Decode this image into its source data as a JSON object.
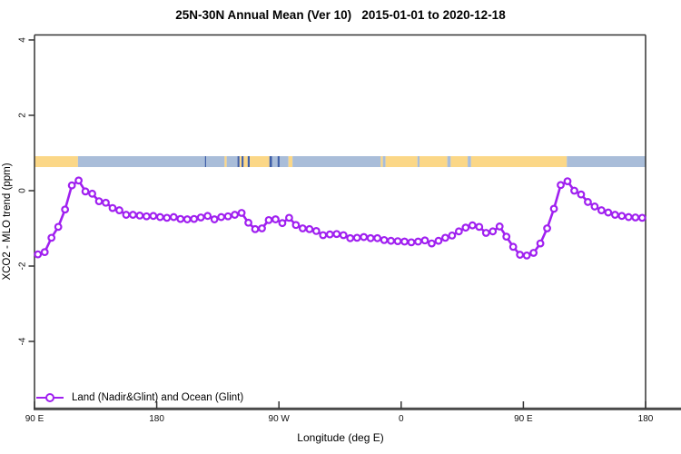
{
  "title": "25N-30N Annual Mean (Ver 10)   2015-01-01 to 2020-12-18",
  "axes": {
    "x_label": "Longitude (deg E)",
    "y_label": "XCO2 - MLO trend (ppm)",
    "x_ticks": [
      {
        "u": 90,
        "label": "90 E"
      },
      {
        "u": 180,
        "label": "180"
      },
      {
        "u": 270,
        "label": "90 W"
      },
      {
        "u": 360,
        "label": "0"
      },
      {
        "u": 450,
        "label": "90 E"
      },
      {
        "u": 540,
        "label": "180"
      }
    ],
    "y_ticks": [
      {
        "v": 4,
        "label": "4"
      },
      {
        "v": 2,
        "label": "2"
      },
      {
        "v": 0,
        "label": "0"
      },
      {
        "v": -2,
        "label": "-2"
      },
      {
        "v": -4,
        "label": "-4"
      }
    ]
  },
  "legend": {
    "label": "Land (Nadir&Glint) and Ocean (Glint)"
  },
  "colors": {
    "series": "#A020F0",
    "land": "#FBD787",
    "ocean": "#A9BDD9",
    "ocean_dark": "#3F5FA8",
    "frame": "#333333",
    "baseline": "#4a4a4a",
    "tick_text": "#111111"
  },
  "map_strip": {
    "description": "land/ocean strip along 25N-30N latitude band",
    "segments": [
      {
        "from": 90,
        "to": 122,
        "type": "land"
      },
      {
        "from": 122,
        "to": 215.5,
        "type": "ocean"
      },
      {
        "from": 215.5,
        "to": 216.5,
        "type": "dark"
      },
      {
        "from": 216.5,
        "to": 230,
        "type": "ocean"
      },
      {
        "from": 230,
        "to": 231.5,
        "type": "island"
      },
      {
        "from": 231.5,
        "to": 239.5,
        "type": "ocean"
      },
      {
        "from": 239.5,
        "to": 241,
        "type": "dark"
      },
      {
        "from": 241,
        "to": 242.5,
        "type": "land"
      },
      {
        "from": 242.5,
        "to": 244,
        "type": "dark"
      },
      {
        "from": 244,
        "to": 247,
        "type": "land"
      },
      {
        "from": 247,
        "to": 248.5,
        "type": "dark"
      },
      {
        "from": 248.5,
        "to": 263,
        "type": "land"
      },
      {
        "from": 263,
        "to": 265,
        "type": "dark"
      },
      {
        "from": 265,
        "to": 269,
        "type": "ocean"
      },
      {
        "from": 269,
        "to": 270.5,
        "type": "dark"
      },
      {
        "from": 270.5,
        "to": 277,
        "type": "ocean"
      },
      {
        "from": 277,
        "to": 280,
        "type": "land"
      },
      {
        "from": 280,
        "to": 345,
        "type": "ocean"
      },
      {
        "from": 345,
        "to": 346.5,
        "type": "land"
      },
      {
        "from": 346.5,
        "to": 348.5,
        "type": "ocean"
      },
      {
        "from": 348.5,
        "to": 372,
        "type": "land"
      },
      {
        "from": 372,
        "to": 373.5,
        "type": "ocean"
      },
      {
        "from": 373.5,
        "to": 394,
        "type": "land"
      },
      {
        "from": 394,
        "to": 396.5,
        "type": "ocean"
      },
      {
        "from": 396.5,
        "to": 409,
        "type": "land"
      },
      {
        "from": 409,
        "to": 411.5,
        "type": "ocean"
      },
      {
        "from": 411.5,
        "to": 482,
        "type": "land"
      },
      {
        "from": 482,
        "to": 540,
        "type": "ocean"
      }
    ]
  },
  "chart_data": {
    "type": "line",
    "marker": "open-circle",
    "title": "25N-30N Annual Mean (Ver 10)   2015-01-01 to 2020-12-18",
    "xlabel": "Longitude (deg E)",
    "ylabel": "XCO2 - MLO trend (ppm)",
    "x_axis_note": "wrapped longitude axis, 90E eastward through 180, 90W, 0, 90E to 180 (u = deg along axis 90..540)",
    "xlim": [
      90,
      540
    ],
    "ylim": [
      -5.8,
      4.15
    ],
    "grid": false,
    "legend_position": "bottom-left",
    "x": [
      92.5,
      97.5,
      102.5,
      107.5,
      112.5,
      117.5,
      122.5,
      127.5,
      132.5,
      137.5,
      142.5,
      147.5,
      152.5,
      157.5,
      162.5,
      167.5,
      172.5,
      177.5,
      182.5,
      187.5,
      192.5,
      197.5,
      202.5,
      207.5,
      212.5,
      217.5,
      222.5,
      227.5,
      232.5,
      237.5,
      242.5,
      247.5,
      252.5,
      257.5,
      262.5,
      267.5,
      272.5,
      277.5,
      282.5,
      287.5,
      292.5,
      297.5,
      302.5,
      307.5,
      312.5,
      317.5,
      322.5,
      327.5,
      332.5,
      337.5,
      342.5,
      347.5,
      352.5,
      357.5,
      362.5,
      367.5,
      372.5,
      377.5,
      382.5,
      387.5,
      392.5,
      397.5,
      402.5,
      407.5,
      412.5,
      417.5,
      422.5,
      427.5,
      432.5,
      437.5,
      442.5,
      447.5,
      452.5,
      457.5,
      462.5,
      467.5,
      472.5,
      477.5,
      482.5,
      487.5,
      492.5,
      497.5,
      502.5,
      507.5,
      512.5,
      517.5,
      522.5,
      527.5,
      532.5,
      537.5
    ],
    "values": [
      -1.69,
      -1.63,
      -1.25,
      -0.96,
      -0.5,
      0.14,
      0.27,
      -0.02,
      -0.08,
      -0.28,
      -0.32,
      -0.46,
      -0.52,
      -0.64,
      -0.64,
      -0.66,
      -0.68,
      -0.67,
      -0.7,
      -0.72,
      -0.7,
      -0.75,
      -0.76,
      -0.75,
      -0.71,
      -0.67,
      -0.76,
      -0.7,
      -0.68,
      -0.64,
      -0.59,
      -0.85,
      -1.02,
      -1.0,
      -0.78,
      -0.76,
      -0.86,
      -0.72,
      -0.91,
      -1.0,
      -1.02,
      -1.07,
      -1.18,
      -1.16,
      -1.15,
      -1.18,
      -1.26,
      -1.25,
      -1.23,
      -1.26,
      -1.26,
      -1.31,
      -1.33,
      -1.34,
      -1.35,
      -1.37,
      -1.35,
      -1.32,
      -1.4,
      -1.33,
      -1.25,
      -1.19,
      -1.08,
      -0.98,
      -0.92,
      -0.96,
      -1.12,
      -1.08,
      -0.95,
      -1.22,
      -1.49,
      -1.7,
      -1.72,
      -1.65,
      -1.4,
      -1.0,
      -0.48,
      0.15,
      0.25,
      0.0,
      -0.1,
      -0.3,
      -0.42,
      -0.52,
      -0.58,
      -0.64,
      -0.67,
      -0.7,
      -0.71,
      -0.72
    ],
    "series": [
      {
        "name": "Land (Nadir&Glint) and Ocean (Glint)",
        "color": "#A020F0"
      }
    ]
  }
}
